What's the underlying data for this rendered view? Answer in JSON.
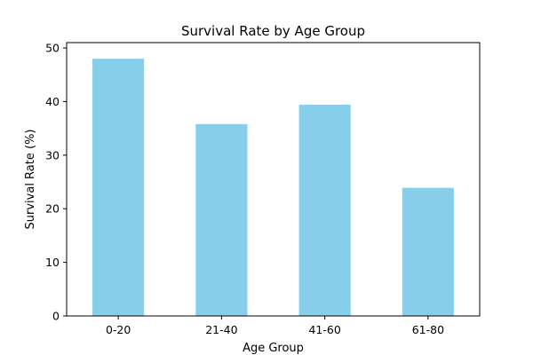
{
  "chart_data": {
    "type": "bar",
    "title": "Survival Rate by Age Group",
    "xlabel": "Age Group",
    "ylabel": "Survival Rate (%)",
    "categories": [
      "0-20",
      "21-40",
      "41-60",
      "61-80"
    ],
    "values": [
      48.0,
      35.8,
      39.4,
      23.9
    ],
    "ylim": [
      0,
      51
    ],
    "yticks": [
      0,
      10,
      20,
      30,
      40,
      50
    ],
    "grid": false,
    "legend": "none",
    "bar_color": "#87CEEB"
  }
}
